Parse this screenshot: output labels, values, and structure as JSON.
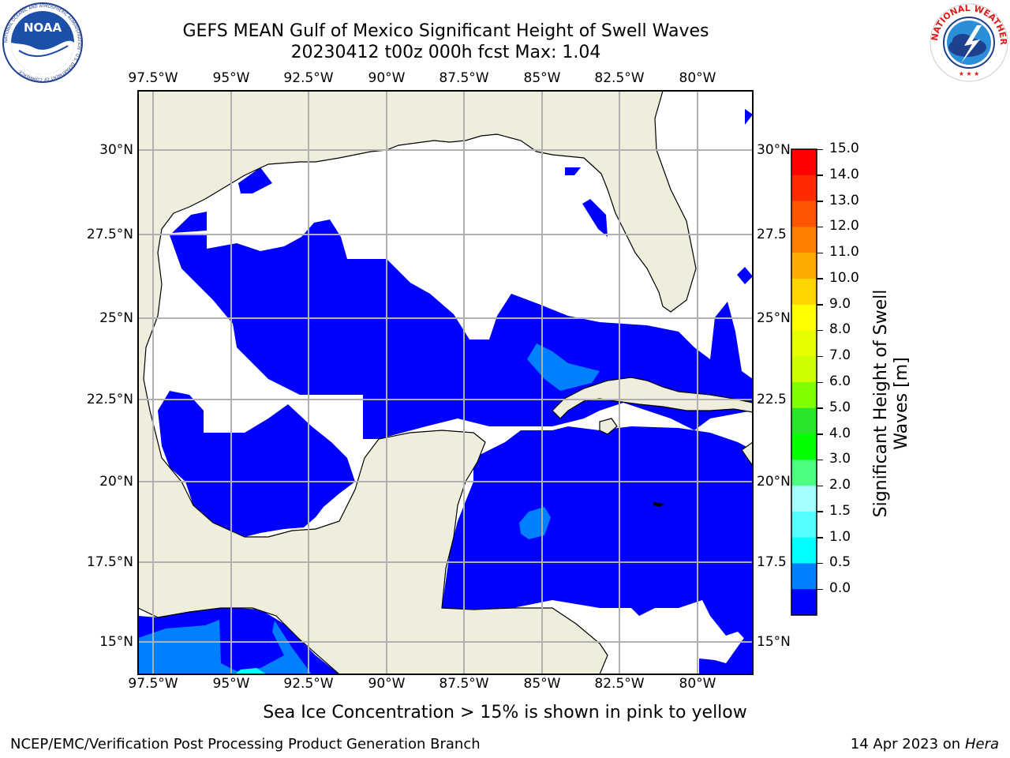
{
  "header": {
    "title_line1": "GEFS MEAN Gulf of Mexico Significant Height of Swell Waves",
    "title_line2": "20230412 t00z 000h fcst   Max: 1.04"
  },
  "logos": {
    "noaa": {
      "text": "NOAA",
      "ring_text": "NATIONAL OCEANIC AND ATMOSPHERIC ADMINISTRATION · U.S. DEPARTMENT OF COMMERCE"
    },
    "nws": {
      "ring_text": "NATIONAL WEATHER SERVICE"
    }
  },
  "map": {
    "lon_ticks": [
      "97.5°W",
      "95°W",
      "92.5°W",
      "90°W",
      "87.5°W",
      "85°W",
      "82.5°W",
      "80°W"
    ],
    "lat_ticks_left": [
      "30°N",
      "27.5°N",
      "25°N",
      "22.5°N",
      "20°N",
      "17.5°N",
      "15°N"
    ],
    "lat_ticks_right": [
      "30°N",
      "27.5",
      "25°N",
      "22.5",
      "20°N",
      "17.5",
      "15°N"
    ],
    "colors": {
      "land": "#efeedc",
      "swell_0": "#0000ff",
      "swell_05": "#0080ff",
      "swell_15": "#00ffff",
      "grid": "#b0b0b0"
    }
  },
  "colorbar": {
    "title": "Significant Height of Swell Waves [m]",
    "labels": [
      "15.0",
      "14.0",
      "13.0",
      "12.0",
      "11.0",
      "10.0",
      "9.0",
      "8.0",
      "7.0",
      "6.0",
      "5.0",
      "4.0",
      "3.0",
      "2.0",
      "1.5",
      "1.0",
      "0.5",
      "0.0"
    ],
    "colors": [
      "#ff0000",
      "#ff2a00",
      "#ff5500",
      "#ff8000",
      "#ffaa00",
      "#ffd500",
      "#ffff00",
      "#e6ff00",
      "#ccff00",
      "#80ff00",
      "#2ae62a",
      "#00ff00",
      "#4dff80",
      "#a6ffff",
      "#55ffff",
      "#00ffff",
      "#0080ff",
      "#0000ff"
    ]
  },
  "caption": "Sea Ice Concentration > 15% is shown in pink to yellow",
  "footer": {
    "left": "NCEP/EMC/Verification Post Processing Product Generation Branch",
    "date": "14 Apr 2023 on ",
    "machine": "Hera"
  }
}
